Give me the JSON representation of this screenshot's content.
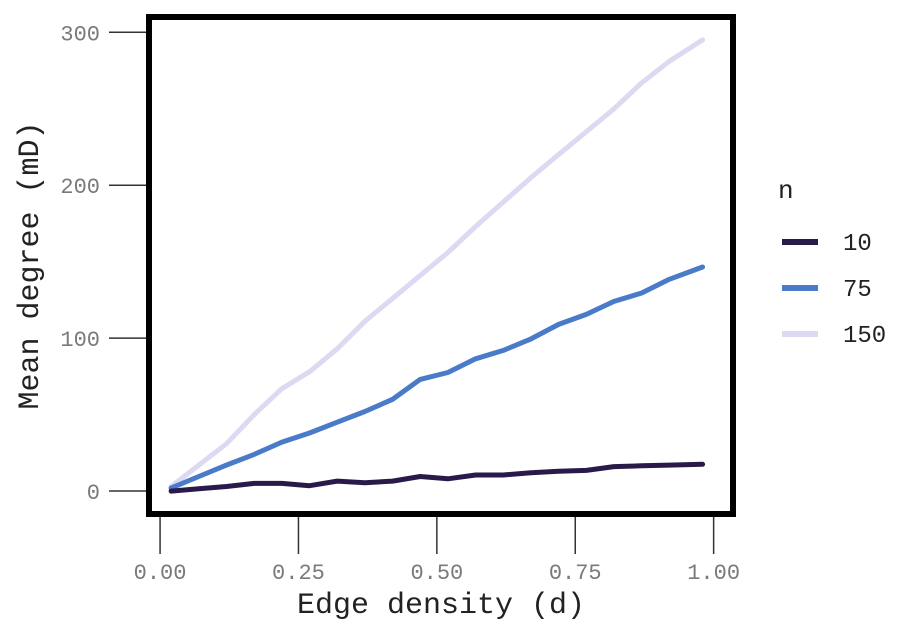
{
  "chart_data": {
    "type": "line",
    "xlabel": "Edge density (d)",
    "ylabel": "Mean degree (mD)",
    "xlim": [
      -0.02,
      1.035
    ],
    "ylim": [
      -15,
      310
    ],
    "x_ticks": [
      0,
      0.25,
      0.5,
      0.75,
      1
    ],
    "x_tick_labels": [
      "0.00",
      "0.25",
      "0.50",
      "0.75",
      "1.00"
    ],
    "y_ticks": [
      0,
      100,
      200,
      300
    ],
    "y_tick_labels": [
      "0",
      "100",
      "200",
      "300"
    ],
    "grid": false,
    "legend": {
      "title": "n",
      "position": "right"
    },
    "x": [
      0.02,
      0.07,
      0.12,
      0.17,
      0.22,
      0.27,
      0.32,
      0.37,
      0.42,
      0.47,
      0.52,
      0.57,
      0.62,
      0.67,
      0.72,
      0.77,
      0.82,
      0.87,
      0.92,
      0.98
    ],
    "series": [
      {
        "name": "10",
        "color": "#2a1a4a",
        "values": [
          0,
          1.5,
          3,
          5,
          5,
          3.5,
          6.5,
          5.5,
          6.5,
          9.5,
          8,
          10.5,
          10.5,
          12,
          13,
          13.5,
          16,
          16.5,
          17,
          17.5
        ]
      },
      {
        "name": "75",
        "color": "#4a7bc8",
        "values": [
          2,
          9.5,
          17,
          24,
          32,
          38,
          45,
          52,
          60,
          73,
          77.5,
          86.5,
          92,
          99.5,
          109,
          115.5,
          124,
          129.5,
          138.5,
          146.5
        ]
      },
      {
        "name": "150",
        "color": "#dcdaf2",
        "values": [
          3,
          17,
          31,
          50,
          67,
          78,
          93,
          111,
          126,
          141,
          156,
          173,
          189,
          205,
          220,
          235,
          250,
          267,
          281,
          295
        ]
      }
    ]
  }
}
